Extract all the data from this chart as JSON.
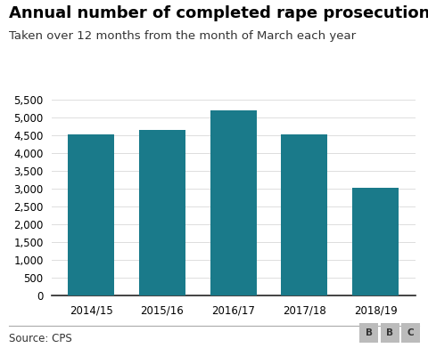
{
  "title": "Annual number of completed rape prosecutions",
  "subtitle": "Taken over 12 months from the month of March each year",
  "categories": [
    "2014/15",
    "2015/16",
    "2016/17",
    "2017/18",
    "2018/19"
  ],
  "values": [
    4530,
    4643,
    5190,
    4517,
    3034
  ],
  "bar_color": "#1a7a8a",
  "ylim": [
    0,
    5500
  ],
  "yticks": [
    0,
    500,
    1000,
    1500,
    2000,
    2500,
    3000,
    3500,
    4000,
    4500,
    5000,
    5500
  ],
  "source_text": "Source: CPS",
  "bbc_letters": [
    "B",
    "B",
    "C"
  ],
  "background_color": "#ffffff",
  "title_fontsize": 13,
  "subtitle_fontsize": 9.5,
  "tick_fontsize": 8.5,
  "source_fontsize": 8.5,
  "grid_color": "#dddddd",
  "axis_color": "#222222",
  "source_color": "#333333"
}
